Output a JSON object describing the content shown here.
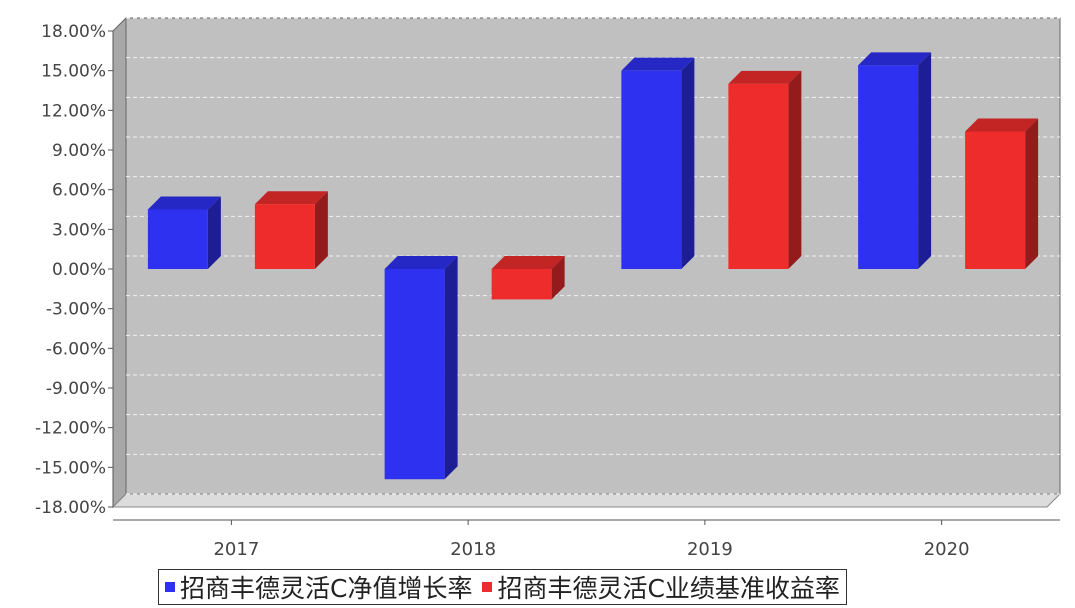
{
  "chart_data": {
    "type": "bar",
    "title": "",
    "xlabel": "",
    "ylabel": "",
    "categories": [
      "2017",
      "2018",
      "2019",
      "2020"
    ],
    "series": [
      {
        "name": "招商丰德灵活C净值增长率",
        "color": "#2e31f0",
        "values": [
          4.5,
          -15.9,
          15.0,
          15.4
        ]
      },
      {
        "name": "招商丰德灵活C业绩基准收益率",
        "color": "#ee2c2c",
        "values": [
          4.9,
          -2.3,
          14.0,
          10.4
        ]
      }
    ],
    "ylim": [
      -18,
      18
    ],
    "yticks": [
      "18.00%",
      "15.00%",
      "12.00%",
      "9.00%",
      "6.00%",
      "3.00%",
      "0.00%",
      "-3.00%",
      "-6.00%",
      "-9.00%",
      "-12.00%",
      "-15.00%",
      "-18.00%"
    ],
    "grid": true,
    "legend_position": "bottom",
    "background": "#c0c0c0"
  }
}
